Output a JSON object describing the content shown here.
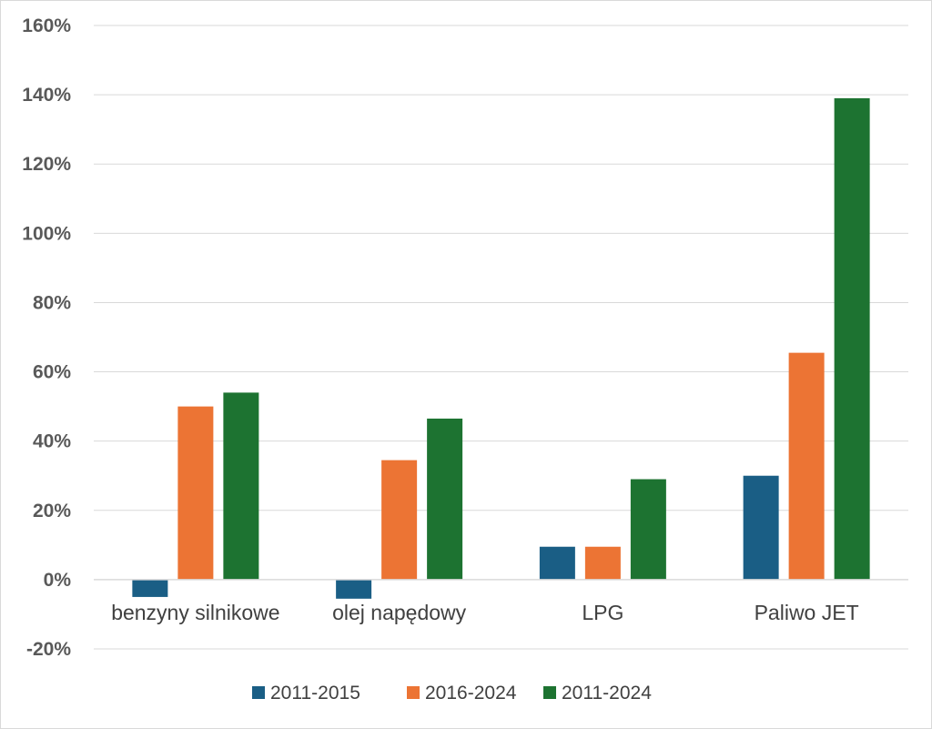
{
  "chart_data": {
    "type": "bar",
    "title": "",
    "xlabel": "",
    "ylabel": "",
    "categories": [
      "benzyny silnikowe",
      "olej napędowy",
      "LPG",
      "Paliwo JET"
    ],
    "series": [
      {
        "name": "2011-2015",
        "color": "#1a5e85",
        "values": [
          -0.05,
          -0.055,
          0.095,
          0.3
        ]
      },
      {
        "name": "2016-2024",
        "color": "#ec7434",
        "values": [
          0.5,
          0.345,
          0.095,
          0.655
        ]
      },
      {
        "name": "2011-2024",
        "color": "#1d7331",
        "values": [
          0.54,
          0.465,
          0.29,
          1.39
        ]
      }
    ],
    "y_ticks": [
      1.6,
      1.4,
      1.2,
      1.0,
      0.8,
      0.6,
      0.4,
      0.2,
      0.0,
      -0.2
    ],
    "y_tick_labels": [
      "160%",
      "140%",
      "120%",
      "100%",
      "80%",
      "60%",
      "40%",
      "20%",
      "0%",
      "-20%"
    ],
    "ylim": [
      -0.2,
      1.6
    ],
    "grid": true,
    "legend_position": "bottom"
  }
}
